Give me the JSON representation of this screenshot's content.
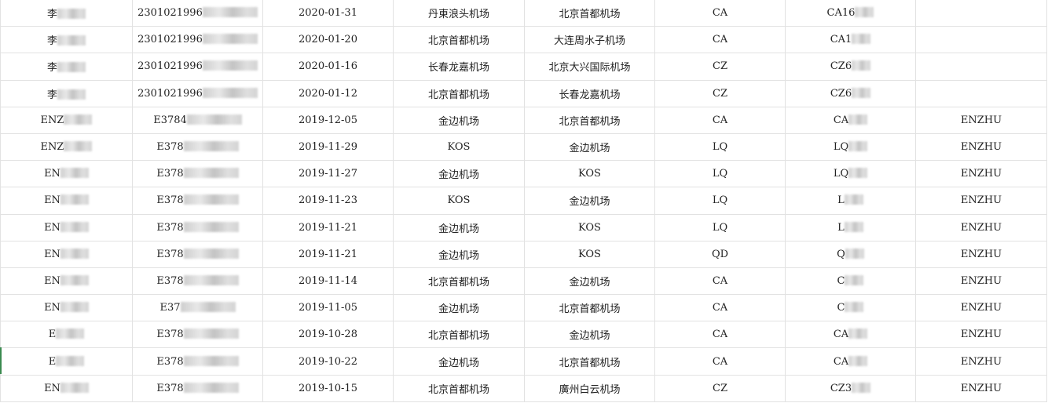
{
  "rows": [
    {
      "name": "李",
      "id": "2301021996",
      "date": "2020-01-31",
      "from": "丹東浪头机场",
      "to": "北京首都机场",
      "airline": "CA",
      "flight": "CA16",
      "pax": ""
    },
    {
      "name": "李",
      "id": "2301021996",
      "date": "2020-01-20",
      "from": "北京首都机场",
      "to": "大连周水子机场",
      "airline": "CA",
      "flight": "CA1",
      "pax": ""
    },
    {
      "name": "李",
      "id": "2301021996",
      "date": "2020-01-16",
      "from": "长春龙嘉机场",
      "to": "北京大兴国际机场",
      "airline": "CZ",
      "flight": "CZ6",
      "pax": ""
    },
    {
      "name": "李",
      "id": "2301021996",
      "date": "2020-01-12",
      "from": "北京首都机场",
      "to": "长春龙嘉机场",
      "airline": "CZ",
      "flight": "CZ6",
      "pax": ""
    },
    {
      "name": "ENZ",
      "id": "E3784",
      "date": "2019-12-05",
      "from": "金边机场",
      "to": "北京首都机场",
      "airline": "CA",
      "flight": "CA",
      "pax": "ENZHU"
    },
    {
      "name": "ENZ",
      "id": "E378",
      "date": "2019-11-29",
      "from": "KOS",
      "to": "金边机场",
      "airline": "LQ",
      "flight": "LQ",
      "pax": "ENZHU"
    },
    {
      "name": "EN",
      "id": "E378",
      "date": "2019-11-27",
      "from": "金边机场",
      "to": "KOS",
      "airline": "LQ",
      "flight": "LQ",
      "pax": "ENZHU"
    },
    {
      "name": "EN",
      "id": "E378",
      "date": "2019-11-23",
      "from": "KOS",
      "to": "金边机场",
      "airline": "LQ",
      "flight": "L",
      "pax": "ENZHU"
    },
    {
      "name": "EN",
      "id": "E378",
      "date": "2019-11-21",
      "from": "金边机场",
      "to": "KOS",
      "airline": "LQ",
      "flight": "L",
      "pax": "ENZHU"
    },
    {
      "name": "EN",
      "id": "E378",
      "date": "2019-11-21",
      "from": "金边机场",
      "to": "KOS",
      "airline": "QD",
      "flight": "Q",
      "pax": "ENZHU"
    },
    {
      "name": "EN",
      "id": "E378",
      "date": "2019-11-14",
      "from": "北京首都机场",
      "to": "金边机场",
      "airline": "CA",
      "flight": "C",
      "pax": "ENZHU"
    },
    {
      "name": "EN",
      "id": "E37",
      "date": "2019-11-05",
      "from": "金边机场",
      "to": "北京首都机场",
      "airline": "CA",
      "flight": "C",
      "pax": "ENZHU"
    },
    {
      "name": "E",
      "id": "E378",
      "date": "2019-10-28",
      "from": "北京首都机场",
      "to": "金边机场",
      "airline": "CA",
      "flight": "CA",
      "pax": "ENZHU"
    },
    {
      "name": "E",
      "id": "E378",
      "date": "2019-10-22",
      "from": "金边机场",
      "to": "北京首都机场",
      "airline": "CA",
      "flight": "CA",
      "pax": "ENZHU"
    },
    {
      "name": "EN",
      "id": "E378",
      "date": "2019-10-15",
      "from": "北京首都机场",
      "to": "廣州白云机场",
      "airline": "CZ",
      "flight": "CZ3",
      "pax": "ENZHU"
    }
  ]
}
